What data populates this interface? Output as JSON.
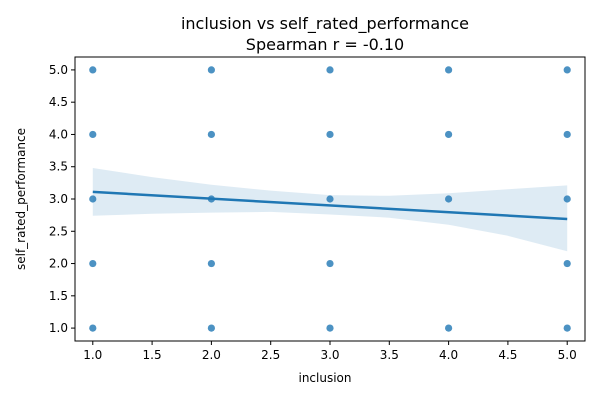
{
  "colors": {
    "points": "#1f77b4",
    "line": "#1f77b4",
    "band": "#1f77b4"
  },
  "chart_data": {
    "type": "scatter",
    "title": "inclusion vs self_rated_performance",
    "subtitle": "Spearman r = -0.10",
    "xlabel": "inclusion",
    "ylabel": "self_rated_performance",
    "xlim": [
      0.85,
      5.15
    ],
    "ylim": [
      0.8,
      5.2
    ],
    "xticks": [
      "1.0",
      "1.5",
      "2.0",
      "2.5",
      "3.0",
      "3.5",
      "4.0",
      "4.5",
      "5.0"
    ],
    "yticks": [
      "1.0",
      "1.5",
      "2.0",
      "2.5",
      "3.0",
      "3.5",
      "4.0",
      "4.5",
      "5.0"
    ],
    "grid": false,
    "legend": "none",
    "points": [
      {
        "x": 1,
        "y": 1
      },
      {
        "x": 1,
        "y": 2
      },
      {
        "x": 1,
        "y": 3
      },
      {
        "x": 1,
        "y": 4
      },
      {
        "x": 1,
        "y": 5
      },
      {
        "x": 2,
        "y": 1
      },
      {
        "x": 2,
        "y": 2
      },
      {
        "x": 2,
        "y": 3
      },
      {
        "x": 2,
        "y": 4
      },
      {
        "x": 2,
        "y": 5
      },
      {
        "x": 3,
        "y": 1
      },
      {
        "x": 3,
        "y": 2
      },
      {
        "x": 3,
        "y": 3
      },
      {
        "x": 3,
        "y": 4
      },
      {
        "x": 3,
        "y": 5
      },
      {
        "x": 4,
        "y": 1
      },
      {
        "x": 4,
        "y": 3
      },
      {
        "x": 4,
        "y": 4
      },
      {
        "x": 4,
        "y": 5
      },
      {
        "x": 5,
        "y": 1
      },
      {
        "x": 5,
        "y": 2
      },
      {
        "x": 5,
        "y": 3
      },
      {
        "x": 5,
        "y": 4
      },
      {
        "x": 5,
        "y": 5
      }
    ],
    "regression": {
      "x": [
        1.0,
        5.0
      ],
      "y": [
        3.11,
        2.69
      ]
    },
    "confidence_band": {
      "x": [
        1.0,
        1.5,
        2.0,
        2.5,
        3.0,
        3.5,
        4.0,
        4.5,
        5.0
      ],
      "upper": [
        3.48,
        3.34,
        3.22,
        3.13,
        3.06,
        3.05,
        3.09,
        3.15,
        3.21
      ],
      "lower": [
        2.74,
        2.77,
        2.79,
        2.8,
        2.76,
        2.71,
        2.6,
        2.43,
        2.19
      ]
    }
  }
}
